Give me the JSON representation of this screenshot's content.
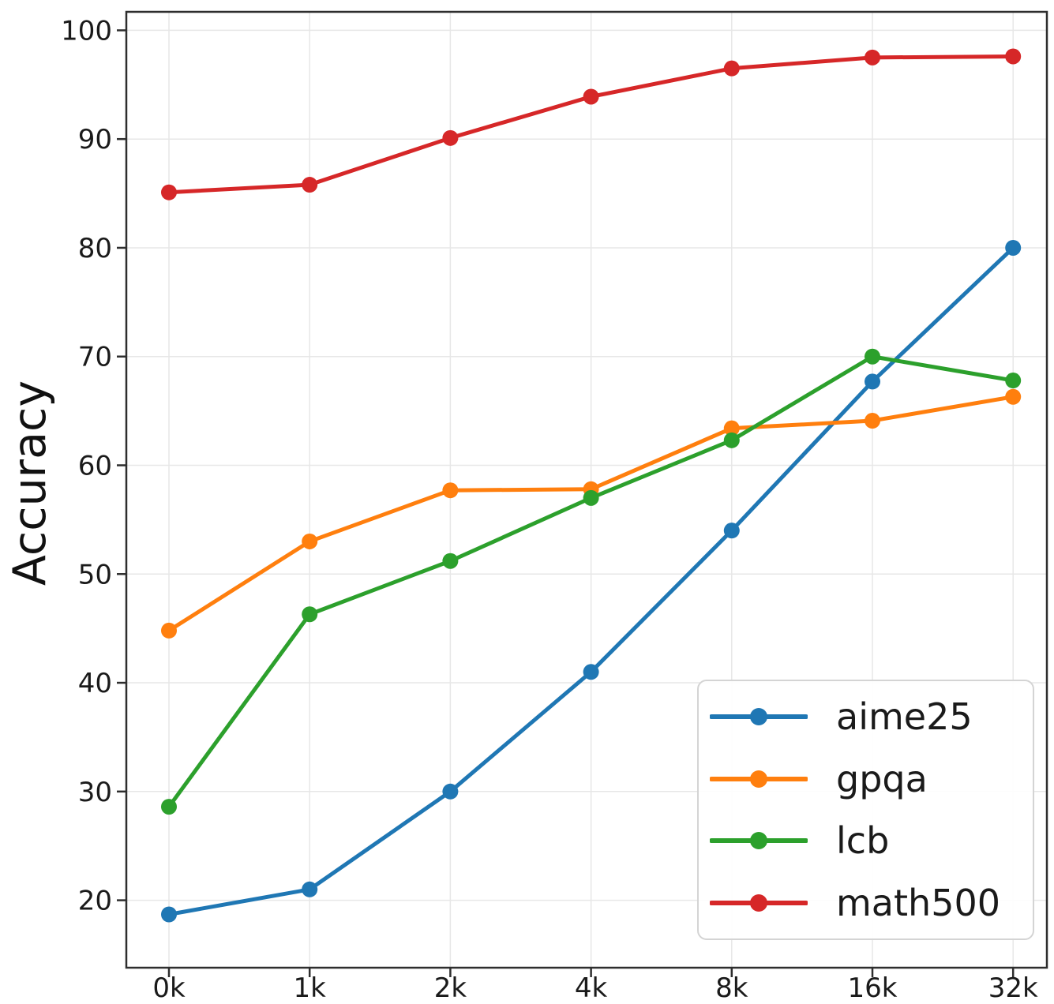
{
  "chart_data": {
    "type": "line",
    "title": "",
    "xlabel": "",
    "ylabel": "Accuracy",
    "categories": [
      "0k",
      "1k",
      "2k",
      "4k",
      "8k",
      "16k",
      "32k"
    ],
    "series": [
      {
        "name": "aime25",
        "color": "#1f77b4",
        "values": [
          18.7,
          21.0,
          30.0,
          41.0,
          54.0,
          67.7,
          80.0
        ]
      },
      {
        "name": "gpqa",
        "color": "#ff7f0e",
        "values": [
          44.8,
          53.0,
          57.7,
          57.8,
          63.4,
          64.1,
          66.3
        ]
      },
      {
        "name": "lcb",
        "color": "#2ca02c",
        "values": [
          28.6,
          46.3,
          51.2,
          57.0,
          62.3,
          70.0,
          67.8
        ]
      },
      {
        "name": "math500",
        "color": "#d62728",
        "values": [
          85.1,
          85.8,
          90.1,
          93.9,
          96.5,
          97.5,
          97.6
        ]
      }
    ],
    "y_ticks": [
      20,
      30,
      40,
      50,
      60,
      70,
      80,
      90,
      100
    ],
    "ylim": [
      13.8,
      101.7
    ],
    "grid": true,
    "legend_position": "lower right",
    "marker": "circle",
    "colors": {
      "grid": "#e7e7e7",
      "spine": "#2e2e2e",
      "tick_label": "#1a1a1a"
    }
  }
}
